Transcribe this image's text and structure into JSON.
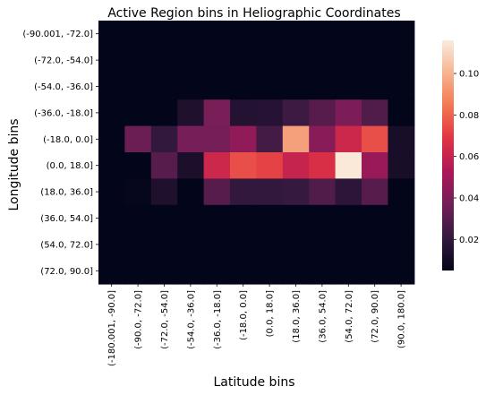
{
  "chart_data": {
    "type": "heatmap",
    "title": "Active Region bins in Heliographic Coordinates",
    "xlabel": "Latitude bins",
    "ylabel": "Longitude bins",
    "x_categories": [
      "(-180.001, -90.0]",
      "(-90.0, -72.0]",
      "(-72.0, -54.0]",
      "(-54.0, -36.0]",
      "(-36.0, -18.0]",
      "(-18.0, 0.0]",
      "(0.0, 18.0]",
      "(18.0, 36.0]",
      "(36.0, 54.0]",
      "(54.0, 72.0]",
      "(72.0, 90.0]",
      "(90.0, 180.0]"
    ],
    "y_categories": [
      "(-90.001, -72.0]",
      "(-72.0, -54.0]",
      "(-54.0, -36.0]",
      "(-36.0, -18.0]",
      "(-18.0, 0.0]",
      "(0.0, 18.0]",
      "(18.0, 36.0]",
      "(36.0, 54.0]",
      "(54.0, 72.0]",
      "(72.0, 90.0]"
    ],
    "values": [
      [
        0.002,
        0.002,
        0.002,
        0.002,
        0.002,
        0.002,
        0.002,
        0.002,
        0.002,
        0.002,
        0.002,
        0.002
      ],
      [
        0.002,
        0.002,
        0.002,
        0.002,
        0.003,
        0.002,
        0.002,
        0.002,
        0.002,
        0.002,
        0.002,
        0.002
      ],
      [
        0.002,
        0.002,
        0.002,
        0.002,
        0.003,
        0.002,
        0.002,
        0.002,
        0.002,
        0.002,
        0.002,
        0.002
      ],
      [
        0.004,
        0.003,
        0.005,
        0.014,
        0.039,
        0.015,
        0.016,
        0.023,
        0.03,
        0.04,
        0.028,
        0.005
      ],
      [
        0.003,
        0.035,
        0.02,
        0.038,
        0.038,
        0.045,
        0.025,
        0.095,
        0.043,
        0.062,
        0.075,
        0.012
      ],
      [
        0.002,
        0.002,
        0.03,
        0.013,
        0.062,
        0.075,
        0.072,
        0.06,
        0.066,
        0.115,
        0.047,
        0.012
      ],
      [
        0.004,
        0.006,
        0.014,
        0.003,
        0.03,
        0.02,
        0.02,
        0.021,
        0.028,
        0.018,
        0.03,
        0.003
      ],
      [
        0.002,
        0.003,
        0.003,
        0.002,
        0.003,
        0.003,
        0.003,
        0.003,
        0.002,
        0.002,
        0.002,
        0.002
      ],
      [
        0.002,
        0.002,
        0.002,
        0.002,
        0.002,
        0.002,
        0.002,
        0.002,
        0.002,
        0.002,
        0.002,
        0.002
      ],
      [
        0.002,
        0.002,
        0.002,
        0.002,
        0.002,
        0.002,
        0.002,
        0.002,
        0.002,
        0.002,
        0.002,
        0.002
      ]
    ],
    "colorbar": {
      "min": 0.005,
      "max": 0.116,
      "ticks": [
        0.02,
        0.04,
        0.06,
        0.08,
        0.1
      ],
      "tick_labels": [
        "0.02",
        "0.04",
        "0.06",
        "0.08",
        "0.10"
      ],
      "colormap": "rocket",
      "colormap_stops": [
        "#03051a",
        "#35193e",
        "#701f57",
        "#ad1759",
        "#e13342",
        "#f37651",
        "#f6b48f",
        "#faebdd"
      ]
    },
    "grid": false
  }
}
